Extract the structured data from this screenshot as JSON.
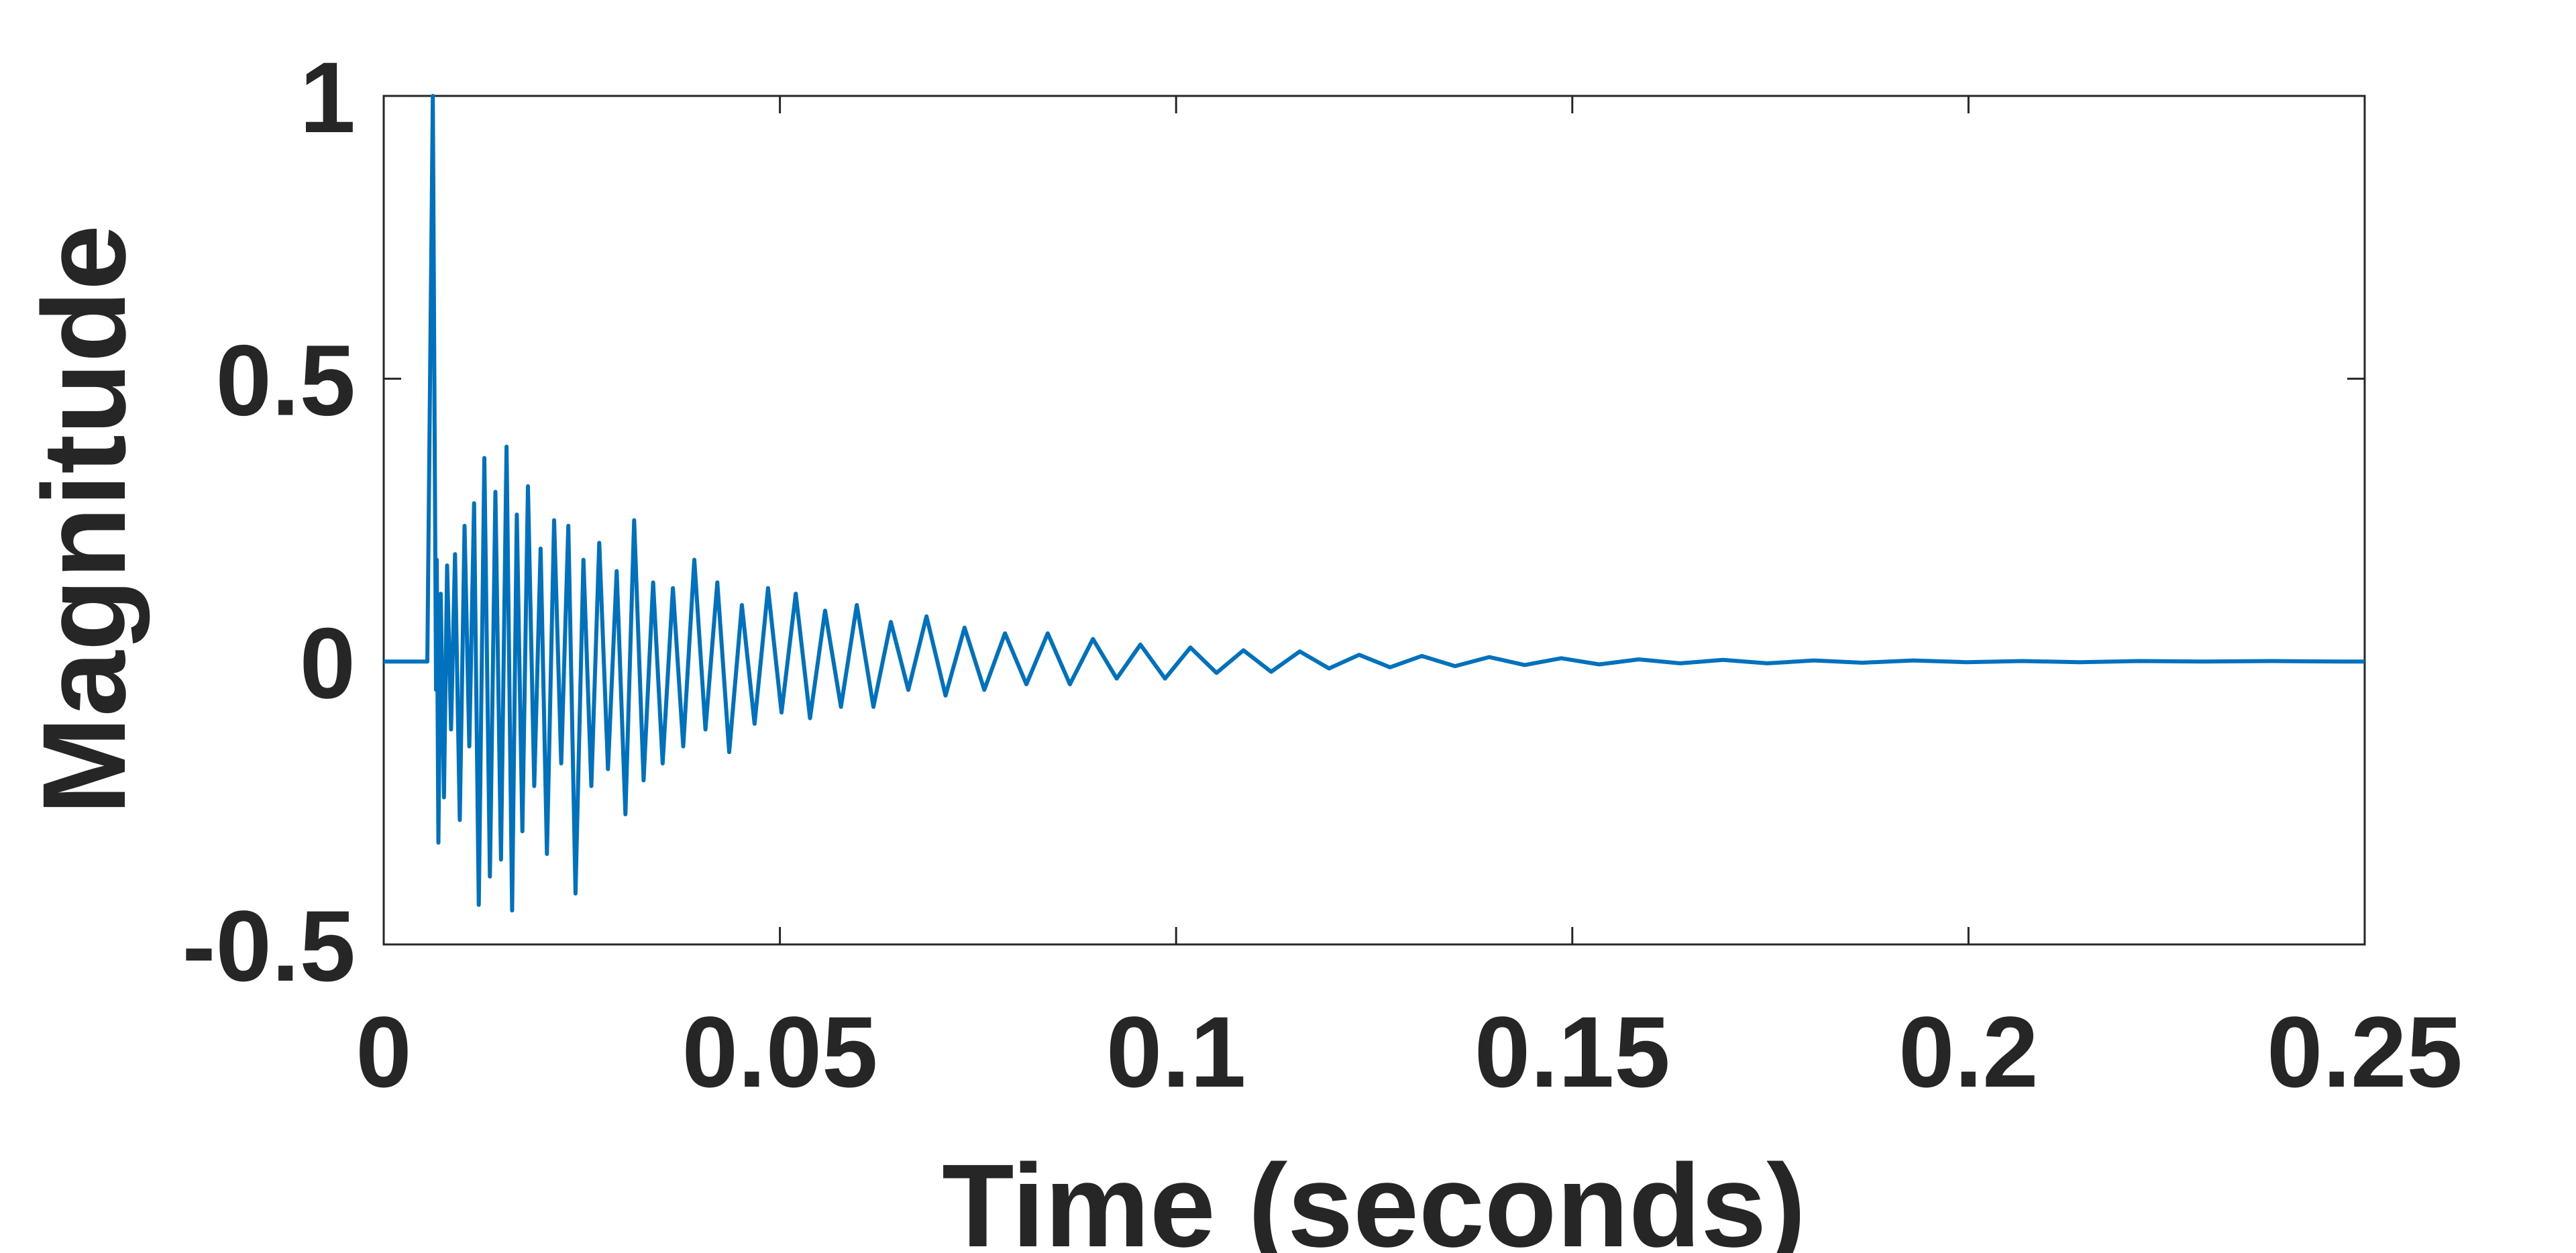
{
  "chart_data": {
    "type": "line",
    "title": "",
    "xlabel": "Time (seconds)",
    "ylabel": "Magnitude",
    "xlim": [
      0,
      0.25
    ],
    "ylim": [
      -0.5,
      1
    ],
    "xticks": [
      0,
      0.05,
      0.1,
      0.15,
      0.2,
      0.25
    ],
    "xtick_labels": [
      "0",
      "0.05",
      "0.1",
      "0.15",
      "0.2",
      "0.25"
    ],
    "yticks": [
      -0.5,
      0,
      0.5,
      1
    ],
    "ytick_labels": [
      "-0.5",
      "0",
      "0.5",
      "1"
    ],
    "grid": false,
    "legend": "none",
    "line_color": "#0072BD",
    "series": [
      {
        "name": "",
        "x": [
          0,
          0.0055,
          0.0062,
          0.0066,
          0.0067,
          0.0069,
          0.0072,
          0.0076,
          0.008,
          0.0085,
          0.009,
          0.0096,
          0.0102,
          0.0108,
          0.0114,
          0.012,
          0.0127,
          0.0134,
          0.0141,
          0.0148,
          0.0155,
          0.0162,
          0.0168,
          0.0175,
          0.0182,
          0.019,
          0.0198,
          0.0206,
          0.0215,
          0.0224,
          0.0233,
          0.0242,
          0.0252,
          0.0262,
          0.0272,
          0.0283,
          0.0294,
          0.0305,
          0.0316,
          0.0328,
          0.034,
          0.0352,
          0.0365,
          0.0378,
          0.0392,
          0.0406,
          0.0421,
          0.0436,
          0.0452,
          0.0468,
          0.0485,
          0.0502,
          0.052,
          0.0538,
          0.0557,
          0.0577,
          0.0597,
          0.0618,
          0.064,
          0.0662,
          0.0685,
          0.0709,
          0.0733,
          0.0758,
          0.0784,
          0.0811,
          0.0838,
          0.0866,
          0.0895,
          0.0925,
          0.0955,
          0.0986,
          0.1018,
          0.1051,
          0.1085,
          0.112,
          0.1156,
          0.1193,
          0.1231,
          0.127,
          0.131,
          0.1352,
          0.1395,
          0.144,
          0.1486,
          0.1534,
          0.1584,
          0.1636,
          0.169,
          0.1746,
          0.1805,
          0.1866,
          0.193,
          0.1997,
          0.2067,
          0.214,
          0.2217,
          0.2298,
          0.2383,
          0.2472,
          0.25
        ],
        "y": [
          0,
          0,
          1.0,
          -0.05,
          0.18,
          -0.32,
          0.12,
          -0.24,
          0.17,
          -0.12,
          0.19,
          -0.28,
          0.24,
          -0.15,
          0.28,
          -0.43,
          0.36,
          -0.38,
          0.3,
          -0.35,
          0.38,
          -0.44,
          0.26,
          -0.3,
          0.31,
          -0.22,
          0.2,
          -0.34,
          0.25,
          -0.18,
          0.24,
          -0.41,
          0.18,
          -0.22,
          0.21,
          -0.19,
          0.16,
          -0.27,
          0.25,
          -0.21,
          0.14,
          -0.18,
          0.13,
          -0.15,
          0.18,
          -0.12,
          0.14,
          -0.16,
          0.1,
          -0.11,
          0.13,
          -0.09,
          0.12,
          -0.1,
          0.09,
          -0.08,
          0.1,
          -0.08,
          0.07,
          -0.05,
          0.08,
          -0.06,
          0.06,
          -0.05,
          0.05,
          -0.04,
          0.05,
          -0.04,
          0.04,
          -0.03,
          0.03,
          -0.03,
          0.025,
          -0.02,
          0.02,
          -0.018,
          0.018,
          -0.012,
          0.012,
          -0.01,
          0.01,
          -0.008,
          0.008,
          -0.006,
          0.006,
          -0.005,
          0.004,
          -0.003,
          0.003,
          -0.003,
          0.002,
          -0.002,
          0.002,
          -0.001,
          0.001,
          -0.001,
          0.001,
          0,
          0.001,
          0,
          0
        ]
      }
    ]
  }
}
